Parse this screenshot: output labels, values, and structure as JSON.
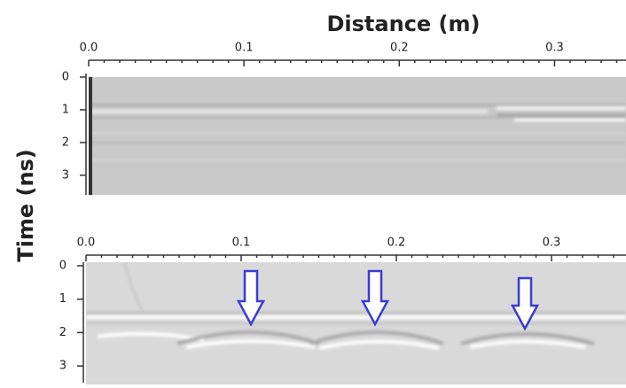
{
  "chart_data": [
    {
      "type": "image",
      "x_label": "Distance (m)",
      "y_label": "Time (ns)",
      "xlim": [
        0,
        0.346
      ],
      "xticks": [
        {
          "value": 0,
          "label": "0.0"
        },
        0.1,
        0.2,
        0.3
      ],
      "ylim": [
        0,
        3.6
      ],
      "yticks": [
        0,
        1,
        2,
        3
      ]
    },
    {
      "type": "image",
      "xlim": [
        0,
        0.348
      ],
      "xticks": [
        {
          "value": 0,
          "label": "0.0"
        },
        0.1,
        0.2,
        0.3
      ],
      "ylim": [
        0,
        3.5
      ],
      "yticks": [
        0,
        1,
        2,
        3
      ]
    }
  ]
}
